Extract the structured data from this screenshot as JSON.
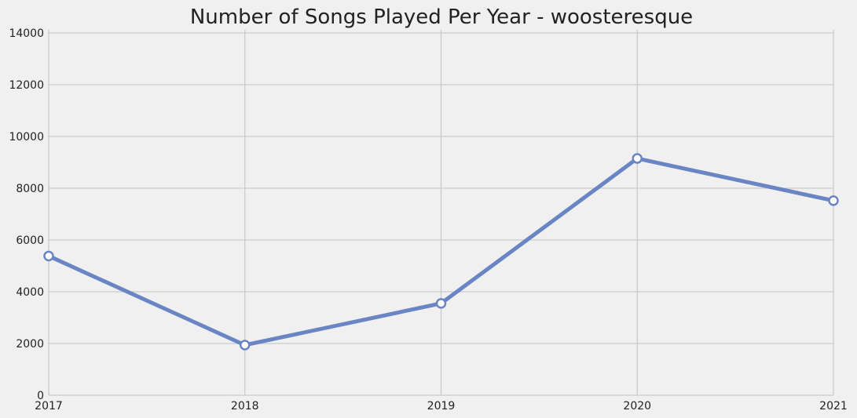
{
  "chart_data": {
    "type": "line",
    "title": "Number of Songs Played Per Year - woosteresque",
    "xlabel": "",
    "ylabel": "",
    "x": [
      2017,
      2018,
      2019,
      2020,
      2021
    ],
    "x_tick_labels": [
      "2017",
      "2018",
      "2019",
      "2020",
      "2021"
    ],
    "xlim": [
      2017,
      2021
    ],
    "ylim": [
      0,
      14000
    ],
    "y_ticks": [
      0,
      2000,
      4000,
      6000,
      8000,
      10000,
      12000,
      14000
    ],
    "y_tick_labels": [
      "0",
      "2000",
      "4000",
      "6000",
      "8000",
      "10000",
      "12000",
      "14000"
    ],
    "series": [
      {
        "values": [
          5380,
          1940,
          3550,
          9150,
          7520
        ],
        "color": "#6a85c3"
      }
    ],
    "marker": "circle-open",
    "grid": true,
    "background_color": "#f0f0f0"
  }
}
